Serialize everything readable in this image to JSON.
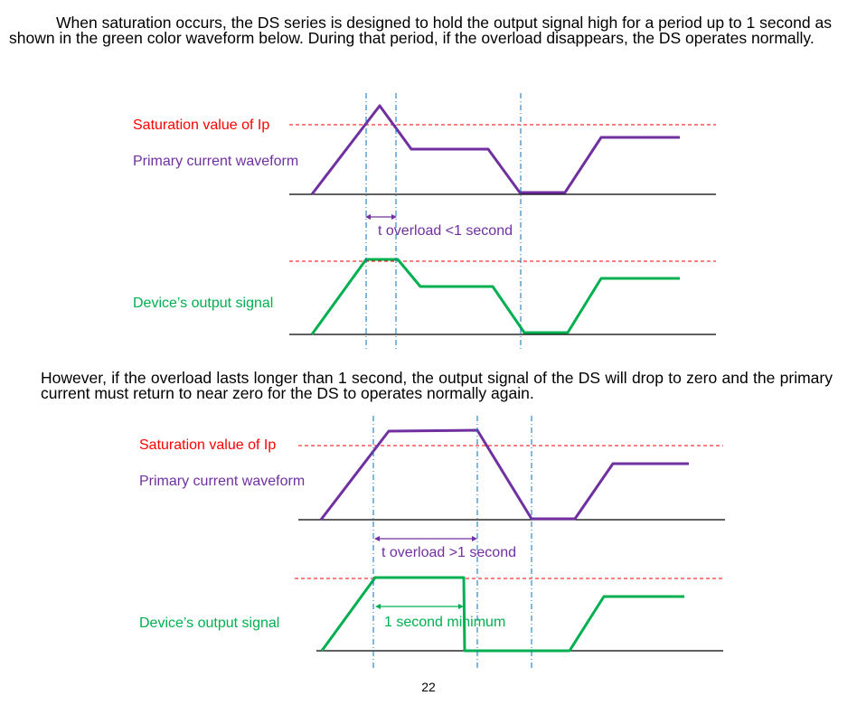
{
  "paragraphs": {
    "intro": "When saturation occurs, the DS series is designed to hold the output signal high for a period up to 1 second as shown in the green color waveform below. During that period, if the overload disappears, the DS operates normally.",
    "second": "However, if the overload lasts longer than 1 second, the output signal of the DS will drop to zero and the primary current must return to near zero for the DS to operates normally again."
  },
  "figure1": {
    "saturation_label": "Saturation value of Ip",
    "primary_label": "Primary current waveform",
    "overload_label": "t overload <1 second",
    "output_label": "Device’s output signal"
  },
  "figure2": {
    "saturation_label": "Saturation value of Ip",
    "primary_label": "Primary current waveform",
    "overload_label": "t overload >1 second",
    "minimum_label": "1 second minimum",
    "output_label": "Device’s output signal"
  },
  "page_number": "22",
  "colors": {
    "saturation": "#ff0000",
    "primary": "#7030a0",
    "output": "#00b050",
    "guide": "#0070c0",
    "baseline": "#000000"
  }
}
